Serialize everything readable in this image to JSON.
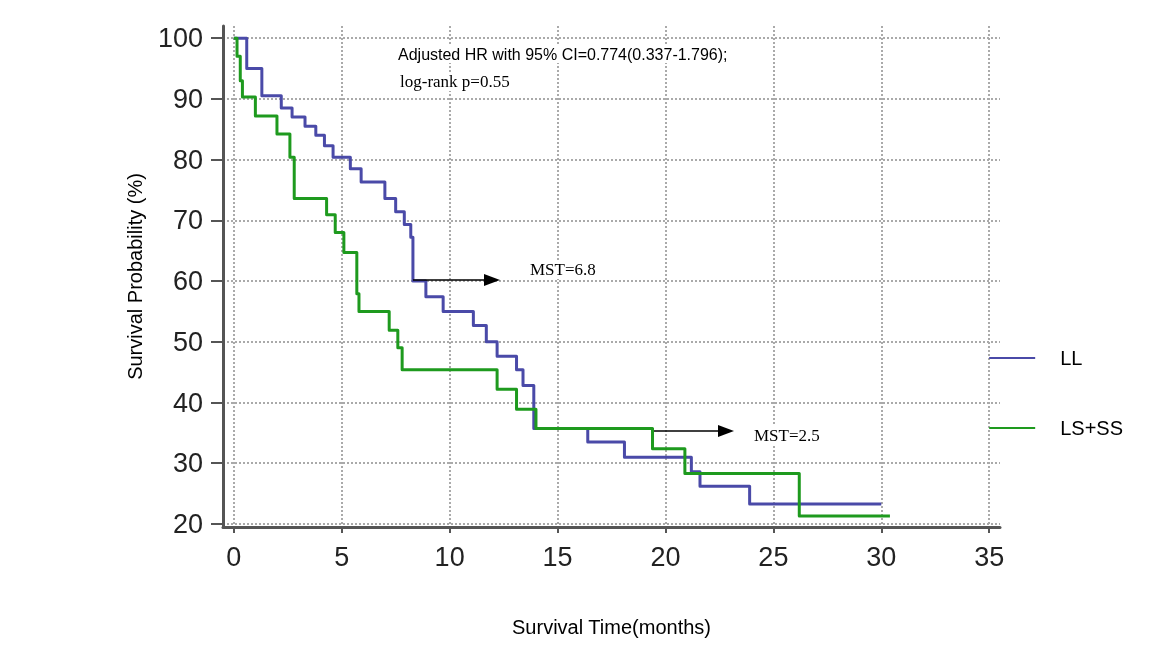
{
  "chart_data": {
    "type": "step",
    "xlabel": "Survival Time(months)",
    "ylabel": "Survival Probability (%)",
    "xlim": [
      -0.5,
      35.5
    ],
    "xticks": [
      0,
      5,
      10,
      15,
      20,
      25,
      30,
      35
    ],
    "ylim": [
      19.5,
      102
    ],
    "yticks": [
      20,
      30,
      40,
      50,
      60,
      70,
      80,
      90,
      100
    ],
    "grid": true,
    "legend": "right",
    "series": [
      {
        "name": "LL",
        "color": "#4a4aa8",
        "x": [
          0,
          0.6,
          1.3,
          2.2,
          2.7,
          3.3,
          3.8,
          4.2,
          4.6,
          5.4,
          5.9,
          7.0,
          7.5,
          7.9,
          8.2,
          8.3,
          8.9,
          9.7,
          11.1,
          11.7,
          12.2,
          13.1,
          13.4,
          13.9,
          16.4,
          18.1,
          21.2,
          21.6,
          23.9,
          30
        ],
        "values": [
          100,
          95,
          90.5,
          88.5,
          87,
          85.5,
          84,
          82.3,
          80.4,
          78.5,
          76.3,
          73.6,
          71.4,
          69.3,
          67.2,
          60,
          57.4,
          55,
          52.7,
          50,
          47.6,
          45.4,
          42.8,
          35.7,
          33.5,
          31,
          28.6,
          26.2,
          23.3,
          23.3
        ]
      },
      {
        "name": "LS+SS",
        "color": "#1e9a1e",
        "x": [
          0,
          0.15,
          0.3,
          0.4,
          1.0,
          2.0,
          2.6,
          2.8,
          4.3,
          4.7,
          5.1,
          5.7,
          5.8,
          7.2,
          7.6,
          7.8,
          12.2,
          13.1,
          14.0,
          19.4,
          20.9,
          26.2,
          30.4
        ],
        "values": [
          100,
          97,
          93,
          90.3,
          87.2,
          84.2,
          80.4,
          73.6,
          70.9,
          68,
          64.7,
          57.9,
          55,
          51.9,
          49,
          45.4,
          42.2,
          38.9,
          35.7,
          32.4,
          28.3,
          21.3,
          21.3
        ]
      }
    ],
    "annotations": [
      "Adjusted HR with 95% CI=0.774(0.337-1.796);",
      "log-rank p=0.55",
      "MST=6.8",
      "MST=2.5"
    ]
  }
}
